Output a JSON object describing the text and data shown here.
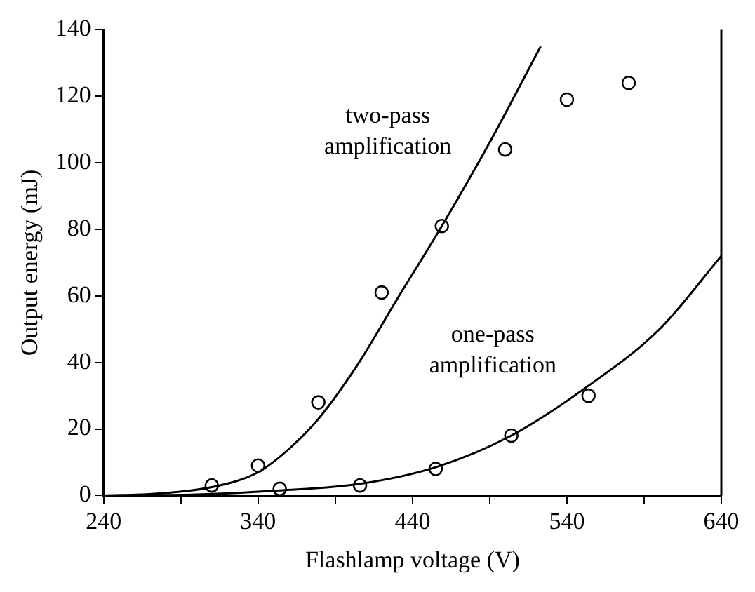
{
  "chart_data": {
    "type": "scatter",
    "xlabel": "Flashlamp voltage (V)",
    "ylabel": "Output energy (mJ)",
    "xlim": [
      240,
      640
    ],
    "ylim": [
      0,
      140
    ],
    "xticks": [
      240,
      {
        "value": 290,
        "label": null
      },
      340,
      {
        "value": 390,
        "label": null
      },
      440,
      {
        "value": 490,
        "label": null
      },
      540,
      {
        "value": 590,
        "label": null
      },
      640
    ],
    "yticks": [
      0,
      20,
      40,
      60,
      80,
      100,
      120,
      140
    ],
    "grid": false,
    "legend": false,
    "marker": "circle",
    "series": [
      {
        "color": "#000000",
        "x": [
          310,
          340,
          379,
          420,
          459,
          500,
          540,
          580
        ],
        "values": [
          3,
          9,
          28,
          61,
          81,
          104,
          119,
          124
        ]
      },
      {
        "type": "line",
        "name": "two-pass amplification",
        "color": "#000000",
        "marker": "none",
        "x": [
          240,
          269,
          310,
          340,
          360,
          379,
          404,
          430,
          459,
          491,
          523
        ],
        "values": [
          0,
          0.4,
          2.5,
          7,
          14,
          23,
          39,
          59,
          81,
          107,
          135
        ]
      },
      {
        "color": "#000000",
        "x": [
          354,
          406,
          455,
          504,
          554
        ],
        "values": [
          2,
          3,
          8,
          18,
          30
        ]
      },
      {
        "type": "line",
        "name": "one-pass amplification",
        "color": "#000000",
        "marker": "none",
        "x": [
          240,
          300,
          354,
          406,
          455,
          504,
          554,
          600,
          640
        ],
        "values": [
          0,
          0.3,
          1.5,
          3.5,
          8.5,
          18,
          33,
          50,
          72
        ]
      }
    ]
  }
}
